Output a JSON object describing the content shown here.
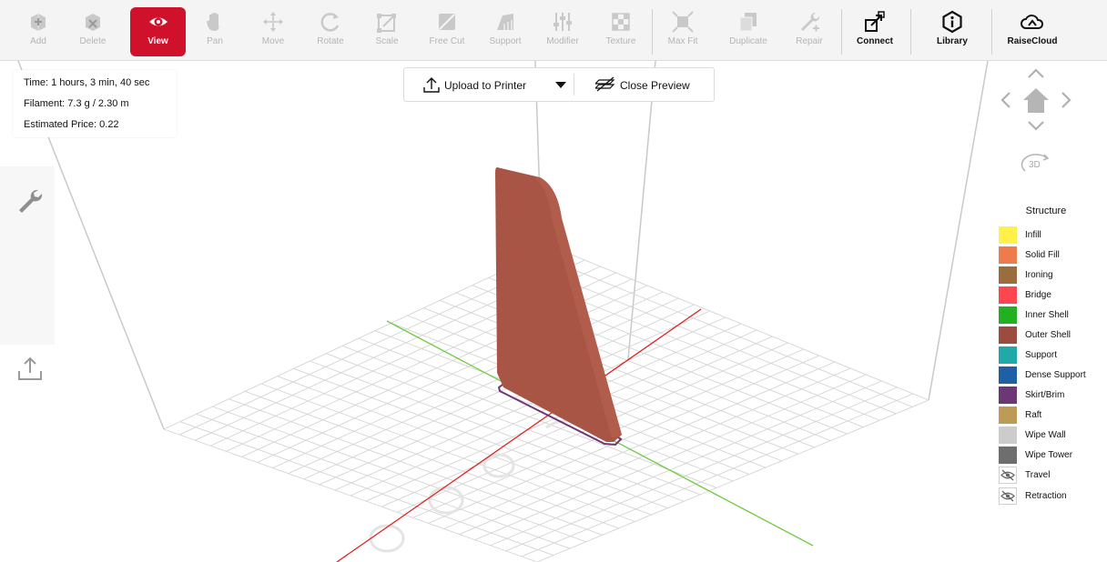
{
  "toolbar": {
    "tools": [
      {
        "label": "Add",
        "icon": "add-icon"
      },
      {
        "label": "Delete",
        "icon": "delete-icon"
      },
      {
        "label": "View",
        "icon": "eye-icon"
      },
      {
        "label": "Pan",
        "icon": "hand-icon"
      },
      {
        "label": "Move",
        "icon": "move-arrows-icon"
      },
      {
        "label": "Rotate",
        "icon": "rotate-icon"
      },
      {
        "label": "Scale",
        "icon": "scale-icon"
      },
      {
        "label": "Free Cut",
        "icon": "cut-icon"
      },
      {
        "label": "Support",
        "icon": "support-icon"
      },
      {
        "label": "Modifier",
        "icon": "sliders-icon"
      },
      {
        "label": "Texture",
        "icon": "checker-icon"
      },
      {
        "label": "Max Fit",
        "icon": "max-fit-icon"
      },
      {
        "label": "Duplicate",
        "icon": "duplicate-icon"
      },
      {
        "label": "Repair",
        "icon": "wrench-plus-icon"
      },
      {
        "label": "Connect",
        "icon": "connect-icon"
      },
      {
        "label": "Library",
        "icon": "info-hexagon-icon"
      },
      {
        "label": "RaiseCloud",
        "icon": "cloud-icon"
      }
    ],
    "active_tool": "View",
    "active_color": "#d0112b"
  },
  "info": {
    "time": "Time: 1 hours, 3 min, 40 sec",
    "filament": "Filament: 7.3 g / 2.30 m",
    "price": "Estimated Price: 0.22"
  },
  "preview": {
    "upload_label": "Upload to Printer",
    "close_label": "Close Preview"
  },
  "navigation": {
    "view_3d_label": "3D"
  },
  "legend": {
    "title": "Structure",
    "items": [
      {
        "label": "Infill",
        "color": "#fff04a"
      },
      {
        "label": "Solid Fill",
        "color": "#ee7a4e"
      },
      {
        "label": "Ironing",
        "color": "#9a6e3c"
      },
      {
        "label": "Bridge",
        "color": "#ff4550"
      },
      {
        "label": "Inner Shell",
        "color": "#20b020"
      },
      {
        "label": "Outer Shell",
        "color": "#9c4c3e"
      },
      {
        "label": "Support",
        "color": "#21a8a8"
      },
      {
        "label": "Dense Support",
        "color": "#1f5fa3"
      },
      {
        "label": "Skirt/Brim",
        "color": "#6d3676"
      },
      {
        "label": "Raft",
        "color": "#bd9a55"
      },
      {
        "label": "Wipe Wall",
        "color": "#cccccc"
      },
      {
        "label": "Wipe Tower",
        "color": "#6e6e6e"
      },
      {
        "label": "Travel",
        "icon": "eye-slash-icon"
      },
      {
        "label": "Retraction",
        "icon": "eye-slash-icon"
      }
    ]
  },
  "scene": {
    "model_color": "#a85546",
    "axis_x_color": "#e02020",
    "axis_y_color": "#6ccc3c",
    "grid_color": "#d4d4d4"
  }
}
